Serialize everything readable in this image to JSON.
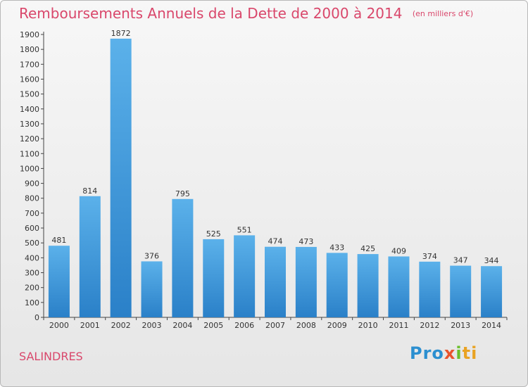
{
  "header": {
    "title": "Remboursements Annuels de la Dette de 2000 à 2014",
    "unit": "(en milliers d'€)"
  },
  "footer": {
    "commune": "SALINDRES",
    "logo_text": "Proxiti"
  },
  "colors": {
    "title": "#d9476b",
    "bar_top": "#5bb1ea",
    "bar_bottom": "#2a80c8"
  },
  "chart_data": {
    "type": "bar",
    "title": "Remboursements Annuels de la Dette de 2000 à 2014",
    "subtitle": "(en milliers d'€)",
    "xlabel": "",
    "ylabel": "",
    "categories": [
      "2000",
      "2001",
      "2002",
      "2003",
      "2004",
      "2005",
      "2006",
      "2007",
      "2008",
      "2009",
      "2010",
      "2011",
      "2012",
      "2013",
      "2014"
    ],
    "values": [
      481,
      814,
      1872,
      376,
      795,
      525,
      551,
      474,
      473,
      433,
      425,
      409,
      374,
      347,
      344
    ],
    "ylim": [
      0,
      1900
    ],
    "yticks": [
      0,
      100,
      200,
      300,
      400,
      500,
      600,
      700,
      800,
      900,
      1000,
      1100,
      1200,
      1300,
      1400,
      1500,
      1600,
      1700,
      1800,
      1900
    ],
    "grid": false,
    "legend": "none"
  }
}
